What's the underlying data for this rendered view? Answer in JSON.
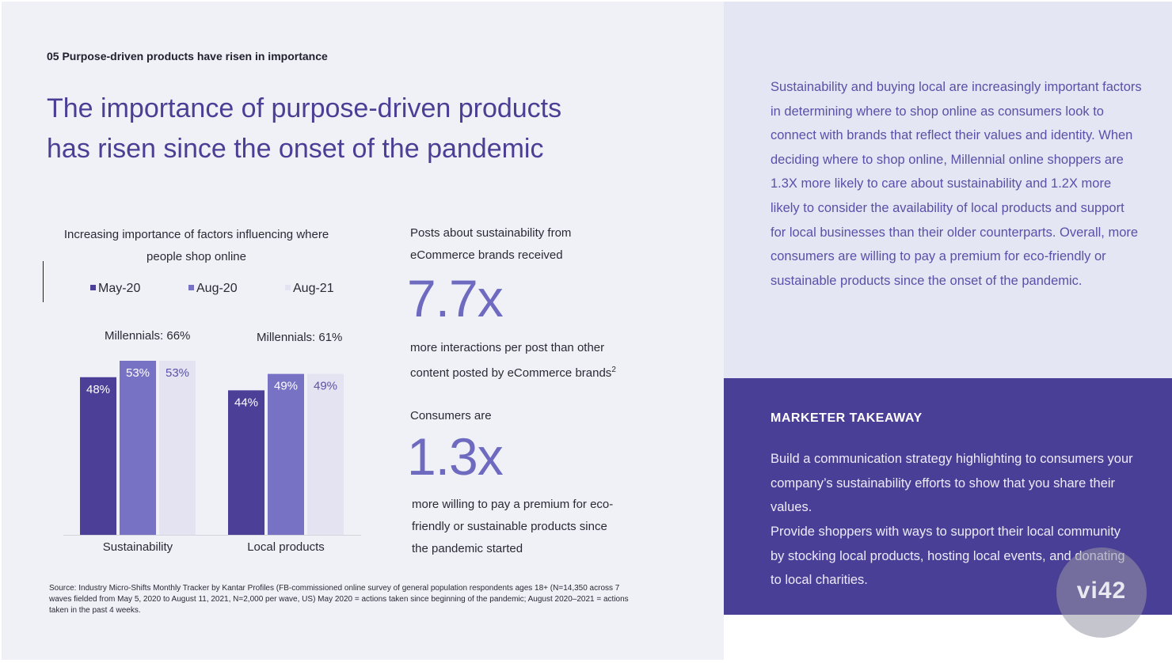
{
  "section_label": "05 Purpose-driven products have risen in importance",
  "headline_line1": "The importance of purpose-driven products",
  "headline_line2": "has risen since the onset of the pandemic",
  "chart": {
    "title_line1": "Increasing importance of factors influencing where",
    "title_line2": "people shop online",
    "legend": [
      "May-20",
      "Aug-20",
      "Aug-21"
    ],
    "group_notes": [
      "Millennials: 66%",
      "Millennials: 61%"
    ]
  },
  "colors": {
    "may20": "#4b3f98",
    "aug20": "#7872c4",
    "aug21": "#e3e3f1",
    "axis": "#d4d4dc"
  },
  "chart_data": {
    "type": "bar",
    "title": "Increasing importance of factors influencing where people shop online",
    "categories": [
      "Sustainability",
      "Local products"
    ],
    "series": [
      {
        "name": "May-20",
        "values": [
          48,
          44
        ],
        "labels": [
          "48%",
          "44%"
        ]
      },
      {
        "name": "Aug-20",
        "values": [
          53,
          49
        ],
        "labels": [
          "53%",
          "49%"
        ]
      },
      {
        "name": "Aug-21",
        "values": [
          53,
          49
        ],
        "labels": [
          "53%",
          "49%"
        ]
      }
    ],
    "annotations": [
      "Millennials: 66%",
      "Millennials: 61%"
    ],
    "ylim": [
      0,
      53
    ],
    "grid": false
  },
  "stat1": {
    "intro_line1": "Posts about sustainability from",
    "intro_line2": "eCommerce brands received",
    "value": "7.7x",
    "desc_line1": "more interactions per post than other",
    "desc_line2": "content posted by eCommerce brands",
    "footnote": "2"
  },
  "stat2": {
    "intro": "Consumers are",
    "value": "1.3x",
    "desc_line1": "more willing to pay a premium for eco-",
    "desc_line2": "friendly or sustainable products since",
    "desc_line3": "the pandemic started"
  },
  "source": "Source: Industry Micro-Shifts Monthly Tracker by Kantar Profiles (FB-commissioned online survey of general population respondents ages 18+ (N=14,350 across 7 waves fielded from May 5, 2020 to August 11, 2021, N=2,000 per wave, US) May 2020 = actions taken since beginning of the pandemic; August 2020–2021 = actions taken in the past 4 weeks.",
  "insight": "Sustainability and buying local are increasingly important factors in determining where to shop online as consumers look to connect with brands that reflect their values and identity. When deciding where to shop online, Millennial online shoppers are 1.3X more likely to care about sustainability and 1.2X more likely to consider the availability of local products and support for local businesses than their older counterparts. Overall, more consumers are willing to pay a premium for eco-friendly or sustainable products since the onset of the pandemic.",
  "takeaway": {
    "title": "MARKETER TAKEAWAY",
    "para1": "Build a communication strategy highlighting to consumers your company’s sustainability efforts to show that you share their values.",
    "para2": "Provide shoppers with ways to support their local community by stocking local products, hosting local events, and donating to local charities."
  },
  "watermark": "vi42"
}
